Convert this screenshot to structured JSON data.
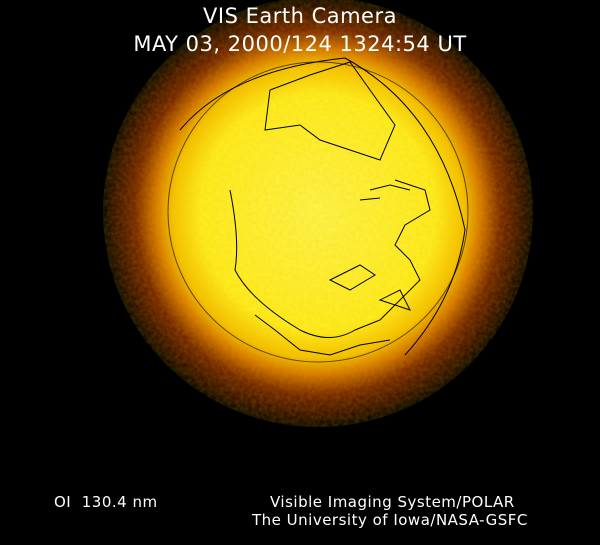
{
  "header": {
    "title": "VIS Earth Camera",
    "timestamp": "MAY 03, 2000/124 1324:54 UT"
  },
  "footer": {
    "filter": "OI  130.4 nm",
    "instrument": "Visible Imaging System/POLAR",
    "institution": "The University of Iowa/NASA-GSFC"
  },
  "image": {
    "subject": "Earth far-ultraviolet auroral/dayglow image",
    "colors": {
      "core": "#ffff30",
      "mid": "#f0a000",
      "limb": "#a03000",
      "background": "#000000",
      "coastlines": "#000000"
    }
  }
}
